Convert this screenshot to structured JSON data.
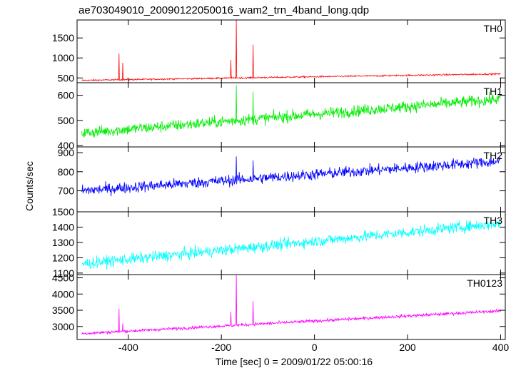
{
  "chart_data": {
    "type": "line",
    "title": "ae703049010_20090122050016_wam2_trn_4band_long.qdp",
    "xlabel": "Time [sec] 0 = 2009/01/22 05:00:16",
    "ylabel": "Counts/sec",
    "xlim": [
      -510,
      410
    ],
    "xticks": [
      -400,
      -200,
      0,
      200,
      400
    ],
    "panels": [
      {
        "name": "TH0",
        "color": "#ff0000",
        "ylim": [
          380,
          1950
        ],
        "yticks": [
          500,
          1000,
          1500
        ],
        "trend": {
          "x": [
            -500,
            400
          ],
          "y": [
            440,
            600
          ]
        },
        "noise": 18,
        "spikes": [
          {
            "x": -420,
            "y": 1110
          },
          {
            "x": -412,
            "y": 880
          },
          {
            "x": -180,
            "y": 950
          },
          {
            "x": -168,
            "y": 1950
          },
          {
            "x": -132,
            "y": 1330
          }
        ]
      },
      {
        "name": "TH1",
        "color": "#00ee00",
        "ylim": [
          395,
          650
        ],
        "yticks": [
          400,
          500,
          600
        ],
        "trend": {
          "x": [
            -500,
            400
          ],
          "y": [
            450,
            585
          ]
        },
        "noise": 22,
        "spikes": [
          {
            "x": -168,
            "y": 640
          },
          {
            "x": -132,
            "y": 615
          }
        ]
      },
      {
        "name": "TH2",
        "color": "#0000ff",
        "ylim": [
          590,
          930
        ],
        "yticks": [
          700,
          800,
          900
        ],
        "trend": {
          "x": [
            -500,
            400
          ],
          "y": [
            700,
            855
          ]
        },
        "noise": 28,
        "spikes": [
          {
            "x": -168,
            "y": 880
          },
          {
            "x": -132,
            "y": 860
          }
        ]
      },
      {
        "name": "TH3",
        "color": "#00ffff",
        "ylim": [
          1090,
          1500
        ],
        "yticks": [
          1100,
          1200,
          1300,
          1400,
          1500
        ],
        "trend": {
          "x": [
            -500,
            400
          ],
          "y": [
            1160,
            1425
          ]
        },
        "noise": 35,
        "spikes": []
      },
      {
        "name": "TH0123",
        "color": "#ff00ff",
        "ylim": [
          2600,
          4600
        ],
        "yticks": [
          3000,
          3500,
          4000,
          4500
        ],
        "trend": {
          "x": [
            -500,
            400
          ],
          "y": [
            2780,
            3480
          ]
        },
        "noise": 45,
        "spikes": [
          {
            "x": -420,
            "y": 3550
          },
          {
            "x": -412,
            "y": 3100
          },
          {
            "x": -180,
            "y": 3450
          },
          {
            "x": -168,
            "y": 4580
          },
          {
            "x": -132,
            "y": 3780
          }
        ]
      }
    ]
  }
}
